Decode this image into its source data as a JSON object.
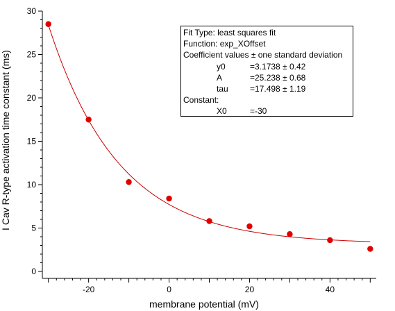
{
  "chart_data": {
    "type": "scatter",
    "xlabel": "membrane potential (mV)",
    "ylabel": "I Cav R-type activation time constant (ms)",
    "xlim": [
      -31.5,
      51.5
    ],
    "ylim": [
      -0.8,
      30
    ],
    "x_ticks": [
      -20,
      0,
      20,
      40
    ],
    "y_ticks": [
      0,
      5,
      10,
      15,
      20,
      25,
      30
    ],
    "grid": false,
    "series": [
      {
        "x": [
          -30,
          -20,
          -10,
          0,
          10,
          20,
          30,
          40,
          50
        ],
        "y": [
          28.5,
          17.5,
          10.3,
          8.4,
          5.8,
          5.2,
          4.3,
          3.6,
          2.6
        ]
      }
    ],
    "fit": {
      "function": "y0 + A*exp(-(x - X0)/tau)",
      "y0": 3.1738,
      "A": 25.238,
      "tau": 17.498,
      "X0": -30,
      "color": "#cc0000"
    },
    "marker_color": "#e00000"
  },
  "fit_box": {
    "fit_type": "Fit Type: least squares fit",
    "function": "Function: exp_XOffset",
    "coef_header": "Coefficient values ± one standard deviation",
    "coefficients": [
      {
        "name": "y0",
        "value": "=3.1738 ± 0.42"
      },
      {
        "name": "A",
        "value": "=25.238 ± 0.68"
      },
      {
        "name": "tau",
        "value": "=17.498 ± 1.19"
      }
    ],
    "constant_header": "Constant:",
    "constants": [
      {
        "name": "X0",
        "value": "=-30"
      }
    ]
  }
}
